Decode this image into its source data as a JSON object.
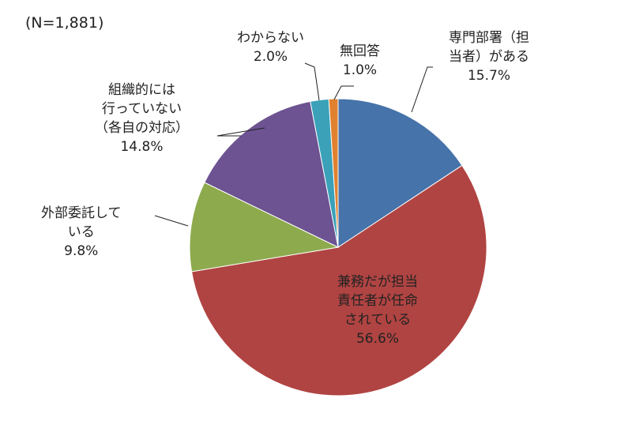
{
  "chart_data": {
    "type": "pie",
    "sample_size_label": "(N=1,881)",
    "start_angle_deg": 0,
    "direction": "clockwise",
    "slices": [
      {
        "label_lines": [
          "専門部署（担",
          "当者）がある"
        ],
        "value": 15.7,
        "value_label": "15.7%",
        "color": "#4673a9"
      },
      {
        "label_lines": [
          "兼務だが担当",
          "責任者が任命",
          "されている"
        ],
        "value": 56.6,
        "value_label": "56.6%",
        "color": "#b04442"
      },
      {
        "label_lines": [
          "外部委託して",
          "いる"
        ],
        "value": 9.8,
        "value_label": "9.8%",
        "color": "#8daa4d"
      },
      {
        "label_lines": [
          "組織的には",
          "行っていない",
          "（各自の対応）"
        ],
        "value": 14.8,
        "value_label": "14.8%",
        "color": "#6d5391"
      },
      {
        "label_lines": [
          "わからない"
        ],
        "value": 2.0,
        "value_label": "2.0%",
        "color": "#3aa1b9"
      },
      {
        "label_lines": [
          "無回答"
        ],
        "value": 1.0,
        "value_label": "1.0%",
        "color": "#e0812f"
      }
    ]
  }
}
